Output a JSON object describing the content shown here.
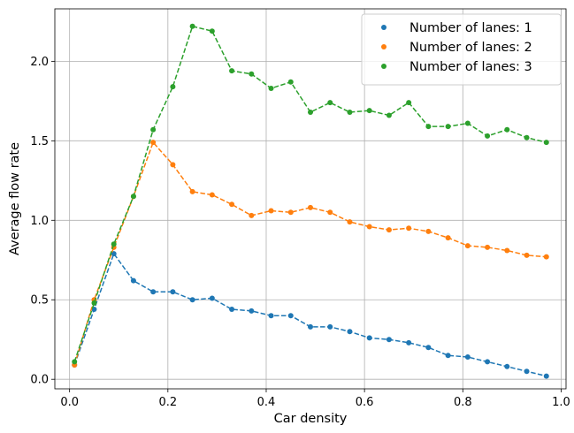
{
  "chart_data": {
    "type": "line",
    "title": "",
    "xlabel": "Car density",
    "ylabel": "Average flow rate",
    "xlim": [
      -0.03,
      1.01
    ],
    "ylim": [
      -0.06,
      2.33
    ],
    "grid": true,
    "legend_position": "top-right",
    "x_ticks": [
      {
        "value": 0.0,
        "label": "0.0"
      },
      {
        "value": 0.2,
        "label": "0.2"
      },
      {
        "value": 0.4,
        "label": "0.4"
      },
      {
        "value": 0.6,
        "label": "0.6"
      },
      {
        "value": 0.8,
        "label": "0.8"
      },
      {
        "value": 1.0,
        "label": "1.0"
      }
    ],
    "y_ticks": [
      {
        "value": 0.0,
        "label": "0.0"
      },
      {
        "value": 0.5,
        "label": "0.5"
      },
      {
        "value": 1.0,
        "label": "1.0"
      },
      {
        "value": 1.5,
        "label": "1.5"
      },
      {
        "value": 2.0,
        "label": "2.0"
      }
    ],
    "x": [
      0.01,
      0.05,
      0.09,
      0.13,
      0.17,
      0.21,
      0.25,
      0.29,
      0.33,
      0.37,
      0.41,
      0.45,
      0.49,
      0.53,
      0.57,
      0.61,
      0.65,
      0.69,
      0.73,
      0.77,
      0.81,
      0.85,
      0.89,
      0.93,
      0.97
    ],
    "series": [
      {
        "name": "Number of lanes: 1",
        "color": "#1f77b4",
        "values": [
          0.09,
          0.44,
          0.79,
          0.62,
          0.55,
          0.55,
          0.5,
          0.51,
          0.44,
          0.43,
          0.4,
          0.4,
          0.33,
          0.33,
          0.3,
          0.26,
          0.25,
          0.23,
          0.2,
          0.15,
          0.14,
          0.11,
          0.08,
          0.05,
          0.02
        ]
      },
      {
        "name": "Number of lanes: 2",
        "color": "#ff7f0e",
        "values": [
          0.09,
          0.5,
          0.83,
          1.15,
          1.49,
          1.35,
          1.18,
          1.16,
          1.1,
          1.03,
          1.06,
          1.05,
          1.08,
          1.05,
          0.99,
          0.96,
          0.94,
          0.95,
          0.93,
          0.89,
          0.84,
          0.83,
          0.81,
          0.78,
          0.77
        ]
      },
      {
        "name": "Number of lanes: 3",
        "color": "#2ca02c",
        "values": [
          0.11,
          0.48,
          0.85,
          1.15,
          1.57,
          1.84,
          2.22,
          2.19,
          1.94,
          1.92,
          1.83,
          1.87,
          1.68,
          1.74,
          1.68,
          1.69,
          1.66,
          1.74,
          1.59,
          1.59,
          1.61,
          1.53,
          1.57,
          1.52,
          1.49
        ]
      }
    ]
  }
}
